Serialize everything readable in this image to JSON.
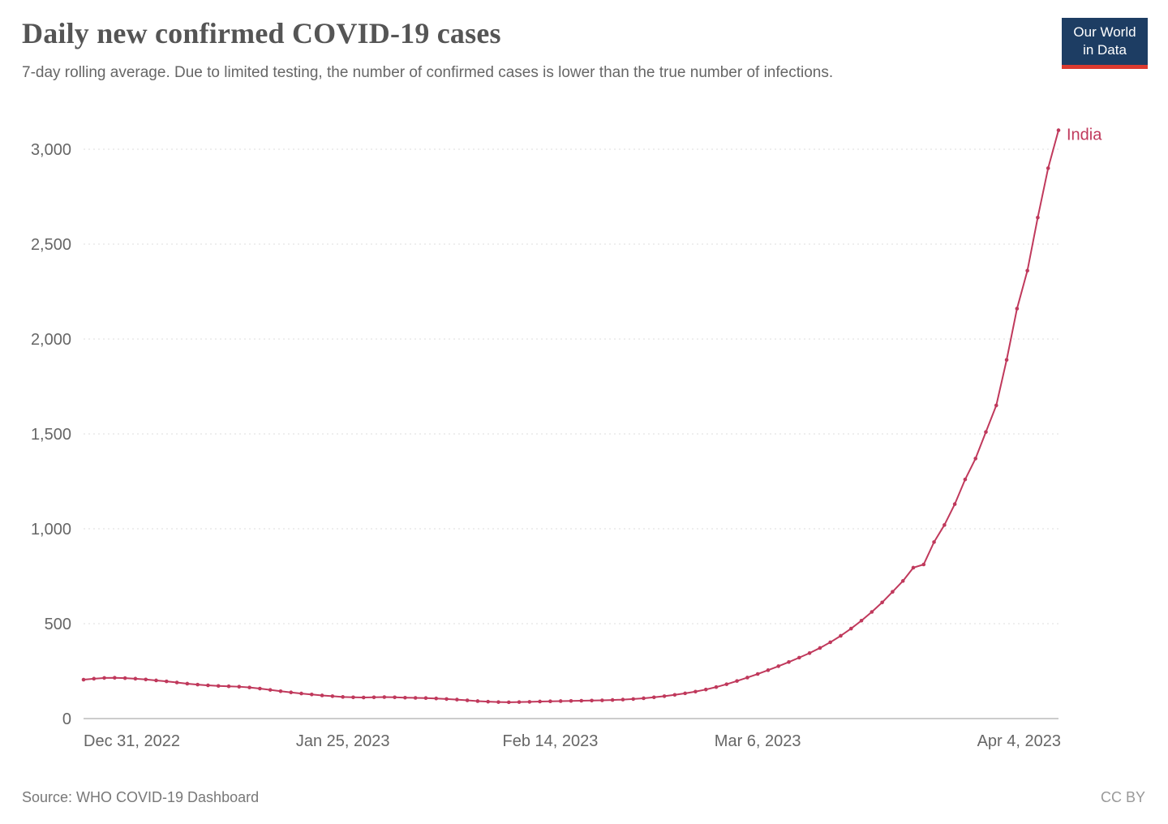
{
  "header": {
    "title": "Daily new confirmed COVID-19 cases",
    "subtitle": "7-day rolling average. Due to limited testing, the number of confirmed cases is lower than the true number of infections."
  },
  "logo": {
    "line1": "Our World",
    "line2": "in Data",
    "bg_color": "#1d3d63",
    "stripe_color": "#dc3a2f"
  },
  "footer": {
    "source": "Source: WHO COVID-19 Dashboard",
    "license": "CC BY"
  },
  "chart_data": {
    "type": "line",
    "title": "Daily new confirmed COVID-19 cases",
    "x_unit": "date",
    "x_frequency": "daily",
    "x_range": [
      "Dec 31, 2022",
      "Apr 4, 2023"
    ],
    "ylim": [
      0,
      3000
    ],
    "grid": "dashed-horizontal",
    "legend_position": "end-of-line-label",
    "y_ticks": [
      {
        "value": 0,
        "label": "0"
      },
      {
        "value": 500,
        "label": "500"
      },
      {
        "value": 1000,
        "label": "1,000"
      },
      {
        "value": 1500,
        "label": "1,500"
      },
      {
        "value": 2000,
        "label": "2,000"
      },
      {
        "value": 2500,
        "label": "2,500"
      },
      {
        "value": 3000,
        "label": "3,000"
      }
    ],
    "x_ticks": [
      {
        "index": 0,
        "label": "Dec 31, 2022"
      },
      {
        "index": 25,
        "label": "Jan 25, 2023"
      },
      {
        "index": 45,
        "label": "Feb 14, 2023"
      },
      {
        "index": 65,
        "label": "Mar 6, 2023"
      },
      {
        "index": 94,
        "label": "Apr 4, 2023"
      }
    ],
    "series": [
      {
        "name": "India",
        "color": "#c0395c",
        "values": [
          205,
          210,
          214,
          215,
          213,
          210,
          206,
          201,
          196,
          190,
          184,
          179,
          175,
          172,
          170,
          168,
          164,
          158,
          151,
          144,
          138,
          132,
          127,
          122,
          118,
          114,
          112,
          111,
          112,
          113,
          112,
          110,
          109,
          108,
          106,
          103,
          100,
          96,
          92,
          89,
          87,
          86,
          87,
          88,
          90,
          91,
          92,
          93,
          94,
          95,
          96,
          98,
          100,
          103,
          107,
          112,
          118,
          125,
          133,
          142,
          153,
          166,
          181,
          198,
          216,
          235,
          255,
          276,
          298,
          321,
          345,
          372,
          402,
          436,
          474,
          516,
          562,
          612,
          668,
          725,
          795,
          812,
          930,
          1020,
          1130,
          1260,
          1370,
          1510,
          1650,
          1890,
          2160,
          2360,
          2640,
          2900,
          3100
        ]
      }
    ]
  }
}
